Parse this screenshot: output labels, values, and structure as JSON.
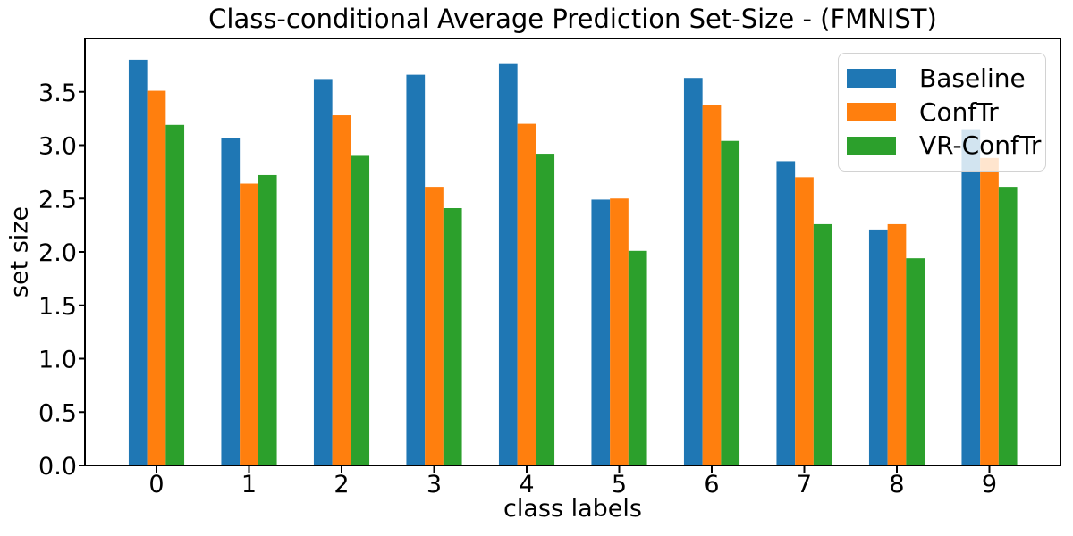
{
  "chart_data": {
    "type": "bar",
    "title": "Class-conditional Average Prediction Set-Size - (FMNIST)",
    "xlabel": "class labels",
    "ylabel": "set size",
    "categories": [
      "0",
      "1",
      "2",
      "3",
      "4",
      "5",
      "6",
      "7",
      "8",
      "9"
    ],
    "series": [
      {
        "name": "Baseline",
        "color": "#1f77b4",
        "values": [
          3.8,
          3.07,
          3.62,
          3.66,
          3.76,
          2.49,
          3.63,
          2.85,
          2.21,
          3.15
        ]
      },
      {
        "name": "ConfTr",
        "color": "#ff7f0e",
        "values": [
          3.51,
          2.64,
          3.28,
          2.61,
          3.2,
          2.5,
          3.38,
          2.7,
          2.26,
          2.88
        ]
      },
      {
        "name": "VR-ConfTr",
        "color": "#2ca02c",
        "values": [
          3.19,
          2.72,
          2.9,
          2.41,
          2.92,
          2.01,
          3.04,
          2.26,
          1.94,
          2.61
        ]
      }
    ],
    "ylim": [
      0,
      4.0
    ],
    "ytick_labels": [
      "0.0",
      "0.5",
      "1.0",
      "1.5",
      "2.0",
      "2.5",
      "3.0",
      "3.5"
    ],
    "legend_position": "upper right",
    "grid": false,
    "axis_color": "#000000",
    "background_color": "#ffffff"
  }
}
